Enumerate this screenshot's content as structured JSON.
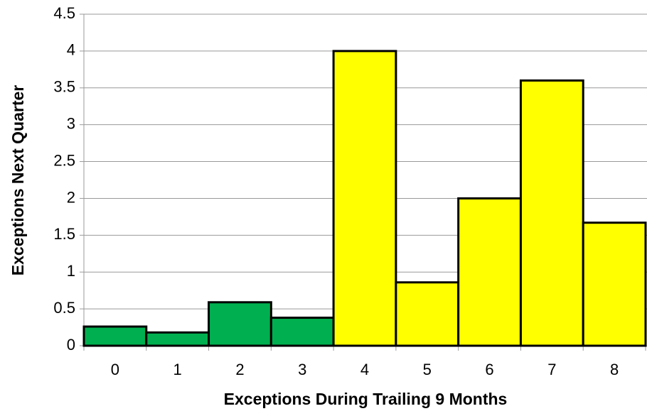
{
  "chart_data": {
    "type": "bar",
    "x_label": "Exceptions During Trailing 9 Months",
    "y_label": "Exceptions Next Quarter",
    "categories": [
      "0",
      "1",
      "2",
      "3",
      "4",
      "5",
      "6",
      "7",
      "8"
    ],
    "values": [
      0.26,
      0.18,
      0.59,
      0.38,
      4.0,
      0.86,
      2.0,
      3.6,
      1.67
    ],
    "colors": [
      "#00b050",
      "#00b050",
      "#00b050",
      "#00b050",
      "#ffff00",
      "#ffff00",
      "#ffff00",
      "#ffff00",
      "#ffff00"
    ],
    "ylim": [
      0,
      4.5
    ],
    "yticks": [
      0,
      0.5,
      1,
      1.5,
      2,
      2.5,
      3,
      3.5,
      4,
      4.5
    ],
    "grid": true
  }
}
